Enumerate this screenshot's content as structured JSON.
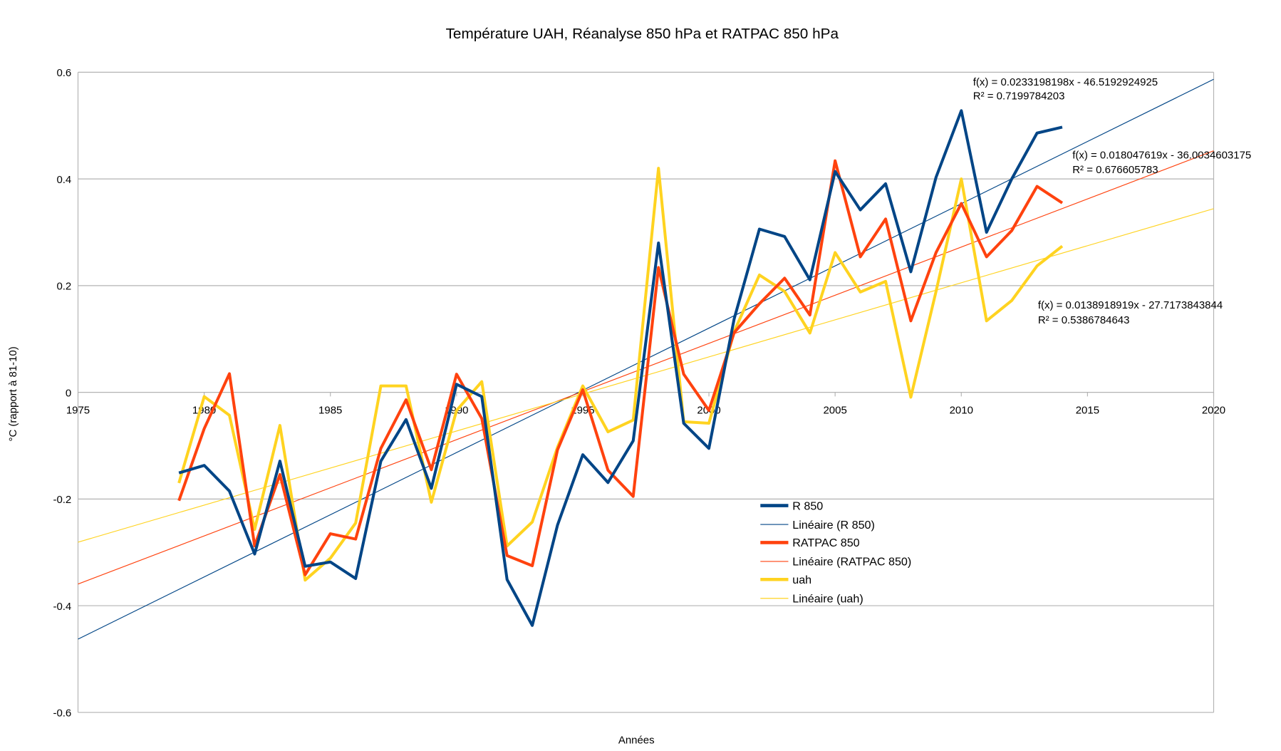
{
  "chart_data": {
    "type": "line",
    "title": "Température UAH, Réanalyse 850 hPa et RATPAC 850 hPa",
    "xlabel": "Années",
    "ylabel": "°C (rapport à 81-10)",
    "xlim": [
      1975,
      2020
    ],
    "ylim": [
      -0.6,
      0.6
    ],
    "xticks": [
      1975,
      1980,
      1985,
      1990,
      1995,
      2000,
      2005,
      2010,
      2015,
      2020
    ],
    "xtick_labels": [
      "1975",
      "1980",
      "1985",
      "1990",
      "1995",
      "2000",
      "2005",
      "2010",
      "2015",
      "2020"
    ],
    "yticks": [
      -0.6,
      -0.4,
      -0.2,
      0,
      0.2,
      0.4,
      0.6
    ],
    "ytick_labels": [
      "-0.6",
      "-0.4",
      "-0.2",
      "0",
      "0.2",
      "0.4",
      "0.6"
    ],
    "grid": "horizontal",
    "legend_position": "center-right",
    "x": [
      1979,
      1980,
      1981,
      1982,
      1983,
      1984,
      1985,
      1986,
      1987,
      1988,
      1989,
      1990,
      1991,
      1992,
      1993,
      1994,
      1995,
      1996,
      1997,
      1998,
      1999,
      2000,
      2001,
      2002,
      2003,
      2004,
      2005,
      2006,
      2007,
      2008,
      2009,
      2010,
      2011,
      2012,
      2013,
      2014
    ],
    "series": [
      {
        "name": "R 850",
        "color": "#004586",
        "values": [
          -0.151,
          -0.137,
          -0.185,
          -0.303,
          -0.129,
          -0.326,
          -0.318,
          -0.349,
          -0.129,
          -0.051,
          -0.18,
          0.015,
          -0.008,
          -0.351,
          -0.437,
          -0.249,
          -0.117,
          -0.169,
          -0.091,
          0.28,
          -0.058,
          -0.105,
          0.138,
          0.306,
          0.292,
          0.211,
          0.414,
          0.342,
          0.391,
          0.226,
          0.403,
          0.528,
          0.3,
          0.4,
          0.486,
          0.497
        ]
      },
      {
        "name": "RATPAC 850",
        "color": "#ff420e",
        "values": [
          -0.203,
          -0.068,
          0.035,
          -0.288,
          -0.154,
          -0.342,
          -0.265,
          -0.275,
          -0.105,
          -0.014,
          -0.145,
          0.034,
          -0.049,
          -0.306,
          -0.325,
          -0.108,
          0.005,
          -0.146,
          -0.195,
          0.234,
          0.034,
          -0.034,
          0.112,
          0.166,
          0.214,
          0.145,
          0.434,
          0.254,
          0.325,
          0.134,
          0.262,
          0.354,
          0.254,
          0.303,
          0.386,
          0.355
        ]
      },
      {
        "name": "uah",
        "color": "#ffd320",
        "values": [
          -0.17,
          -0.008,
          -0.043,
          -0.257,
          -0.062,
          -0.352,
          -0.311,
          -0.245,
          0.012,
          0.012,
          -0.206,
          -0.034,
          0.02,
          -0.288,
          -0.243,
          -0.103,
          0.012,
          -0.074,
          -0.052,
          0.42,
          -0.055,
          -0.058,
          0.114,
          0.22,
          0.189,
          0.111,
          0.262,
          0.188,
          0.208,
          -0.009,
          0.189,
          0.4,
          0.134,
          0.172,
          0.237,
          0.274
        ]
      }
    ],
    "trendlines": [
      {
        "name": "Linéaire (R 850)",
        "color": "#004586",
        "slope": 0.0233198198,
        "intercept": -46.5192924925,
        "equation": "f(x) = 0.0233198198x - 46.5192924925",
        "r2": "R² = 0.7199784203"
      },
      {
        "name": "Linéaire (RATPAC 850)",
        "color": "#ff420e",
        "slope": 0.018047619,
        "intercept": -36.0034603175,
        "equation": "f(x) = 0.018047619x - 36.0034603175",
        "r2": "R² = 0.676605783"
      },
      {
        "name": "Linéaire (uah)",
        "color": "#ffd320",
        "slope": 0.0138918919,
        "intercept": -27.7173843844,
        "equation": "f(x) = 0.0138918919x - 27.7173843844",
        "r2": "R² = 0.5386784643"
      }
    ]
  }
}
